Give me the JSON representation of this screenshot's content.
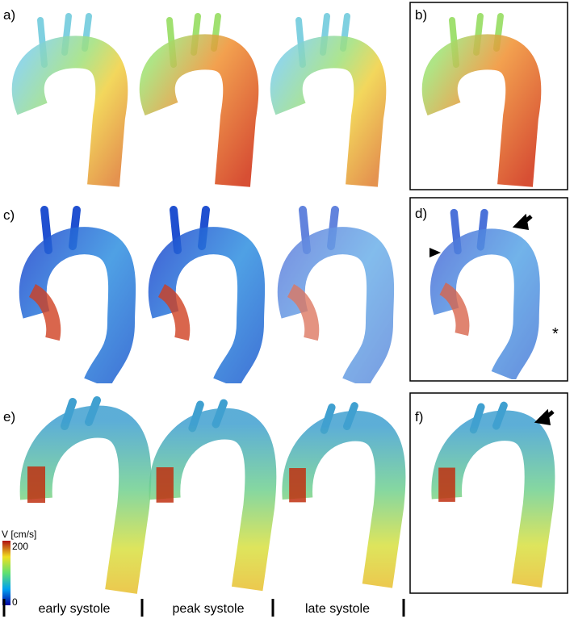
{
  "panels": [
    {
      "label": "a)"
    },
    {
      "label": "b)"
    },
    {
      "label": "c)"
    },
    {
      "label": "d)"
    },
    {
      "label": "e)"
    },
    {
      "label": "f)"
    }
  ],
  "annotations": {
    "asterisk": "*"
  },
  "colorbar": {
    "title": "V [cm/s]",
    "max": 200,
    "min": 0
  },
  "phases": [
    "early systole",
    "peak systole",
    "late systole"
  ]
}
